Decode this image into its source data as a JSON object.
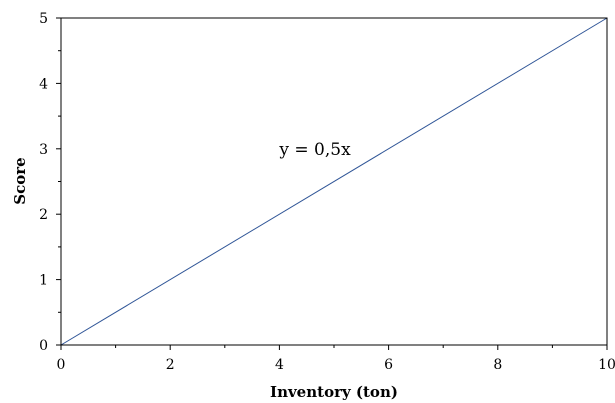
{
  "chart_data": {
    "type": "line",
    "title": "",
    "xlabel": "Inventory (ton)",
    "ylabel": "Score",
    "xlim": [
      0,
      10
    ],
    "ylim": [
      0,
      5
    ],
    "x_ticks": [
      0,
      2,
      4,
      6,
      8,
      10
    ],
    "y_ticks": [
      0,
      1,
      2,
      3,
      4,
      5
    ],
    "grid": false,
    "legend": "none",
    "series": [
      {
        "x": [
          0,
          10
        ],
        "y": [
          0,
          5
        ],
        "color": "#2f5597"
      }
    ],
    "annotations": [
      {
        "text": "y = 0,5x",
        "x": 4,
        "y": 3
      }
    ]
  }
}
